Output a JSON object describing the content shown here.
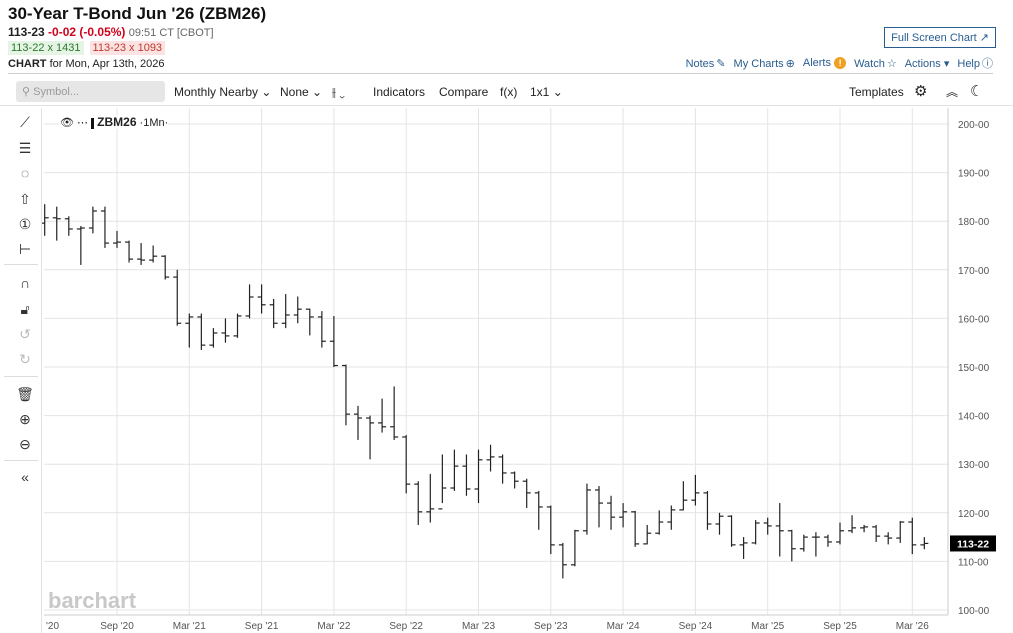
{
  "header": {
    "title": "30-Year T-Bond Jun '26 (ZBM26)",
    "last": "113-23",
    "change": "-0-02 (-0.05%)",
    "time": "09:51 CT [CBOT]",
    "bid": "113-22 x 1431",
    "ask": "113-23 x 1093",
    "chart_label": "CHART",
    "chart_for": "for Mon, Apr 13th, 2026"
  },
  "top_links": {
    "full_screen": "Full Screen Chart",
    "notes": "Notes",
    "my_charts": "My Charts",
    "alerts": "Alerts",
    "watch": "Watch",
    "actions": "Actions",
    "help": "Help"
  },
  "toolbar": {
    "search_placeholder": "Symbol...",
    "period": "Monthly Nearby",
    "overlay": "None",
    "indicators": "Indicators",
    "compare": "Compare",
    "fx": "f(x)",
    "layout": "1x1",
    "templates": "Templates"
  },
  "legend": {
    "symbol": "ZBM26",
    "interval": "1Mn"
  },
  "watermark": "barchart",
  "colors": {
    "bar": "#222222",
    "grid": "#e4e4e4",
    "price_box": "#000000"
  },
  "chart_data": {
    "type": "ohlc",
    "title": "ZBM26 monthly nearby",
    "start_month": "2020-02",
    "ylim": [
      100,
      200
    ],
    "y_ticks": [
      {
        "v": 200,
        "t": "200-00"
      },
      {
        "v": 190,
        "t": "190-00"
      },
      {
        "v": 180,
        "t": "180-00"
      },
      {
        "v": 170,
        "t": "170-00"
      },
      {
        "v": 160,
        "t": "160-00"
      },
      {
        "v": 150,
        "t": "150-00"
      },
      {
        "v": 140,
        "t": "140-00"
      },
      {
        "v": 130,
        "t": "130-00"
      },
      {
        "v": 120,
        "t": "120-00"
      },
      {
        "v": 110,
        "t": "110-00"
      },
      {
        "v": 100,
        "t": "100-00"
      }
    ],
    "x_ticks": [
      {
        "i": 1,
        "t": "'20"
      },
      {
        "i": 7,
        "t": "Sep '20"
      },
      {
        "i": 13,
        "t": "Mar '21"
      },
      {
        "i": 19,
        "t": "Sep '21"
      },
      {
        "i": 25,
        "t": "Mar '22"
      },
      {
        "i": 31,
        "t": "Sep '22"
      },
      {
        "i": 37,
        "t": "Mar '23"
      },
      {
        "i": 43,
        "t": "Sep '23"
      },
      {
        "i": 49,
        "t": "Mar '24"
      },
      {
        "i": 55,
        "t": "Sep '24"
      },
      {
        "i": 61,
        "t": "Mar '25"
      },
      {
        "i": 67,
        "t": "Sep '25"
      },
      {
        "i": 73,
        "t": "Mar '26"
      }
    ],
    "last_price": {
      "v": 113.69,
      "t": "113-22"
    },
    "bars": [
      [
        178.5,
        181,
        177,
        179.6
      ],
      [
        179.6,
        183.5,
        177,
        180.7
      ],
      [
        180.7,
        183,
        176,
        180.5
      ],
      [
        180.5,
        181,
        177,
        178.4
      ],
      [
        178.4,
        179,
        171,
        178.6
      ],
      [
        178.6,
        183,
        177.5,
        182.1
      ],
      [
        182.1,
        183,
        174.5,
        175.5
      ],
      [
        175.5,
        178,
        174.5,
        175.7
      ],
      [
        175.7,
        176,
        171.5,
        172.2
      ],
      [
        172.2,
        175.5,
        171,
        172.0
      ],
      [
        172,
        175,
        171.5,
        172.8
      ],
      [
        172.8,
        173,
        168,
        168.5
      ],
      [
        168.5,
        170,
        158.5,
        159.0
      ],
      [
        159,
        161,
        154,
        160.3
      ],
      [
        160.3,
        161,
        153.5,
        154.5
      ],
      [
        154.5,
        158,
        154,
        157.0
      ],
      [
        157,
        160,
        155,
        156.4
      ],
      [
        156.4,
        161,
        156,
        160.5
      ],
      [
        160.5,
        167,
        160,
        164.4
      ],
      [
        164.4,
        167,
        161,
        162.8
      ],
      [
        162.8,
        164,
        158,
        159.0
      ],
      [
        159,
        165,
        158,
        160.7
      ],
      [
        160.7,
        164.5,
        159,
        161.9
      ],
      [
        161.9,
        162,
        156.5,
        160.3
      ],
      [
        160.3,
        161.5,
        154,
        155.3
      ],
      [
        155.3,
        160.5,
        150,
        150.3
      ],
      [
        150.3,
        150.5,
        138,
        140.3
      ],
      [
        140.3,
        142,
        135,
        139.5
      ],
      [
        139.5,
        140,
        131,
        138.5
      ],
      [
        138.5,
        143.5,
        136.5,
        137.7
      ],
      [
        137.7,
        146,
        135,
        135.6
      ],
      [
        135.6,
        136,
        124,
        125.9
      ],
      [
        125.9,
        126.5,
        117.5,
        120.2
      ],
      [
        120.2,
        128,
        118,
        120.8
      ],
      [
        120.8,
        132,
        122,
        125.1
      ],
      [
        125.1,
        133,
        124.5,
        129.6
      ],
      [
        129.6,
        132,
        123.5,
        124.9
      ],
      [
        124.9,
        133,
        122,
        130.9
      ],
      [
        130.9,
        134,
        128.5,
        131.5
      ],
      [
        131.5,
        132,
        126,
        128.2
      ],
      [
        128.2,
        128.5,
        125,
        126.5
      ],
      [
        126.5,
        127,
        121,
        124.1
      ],
      [
        124.1,
        124.5,
        116.5,
        121.2
      ],
      [
        121.2,
        121.5,
        111.5,
        113.4
      ],
      [
        113.4,
        113.8,
        106.5,
        109.3
      ],
      [
        109.3,
        116.5,
        109,
        116.3
      ],
      [
        116.3,
        126,
        115.5,
        124.7
      ],
      [
        124.7,
        125.5,
        117,
        122.0
      ],
      [
        122,
        123.5,
        116.5,
        119.1
      ],
      [
        119.1,
        122,
        117,
        120.2
      ],
      [
        120.2,
        120.4,
        113,
        113.6
      ],
      [
        113.6,
        117.5,
        113.5,
        115.8
      ],
      [
        115.8,
        120.5,
        115.5,
        118.1
      ],
      [
        118.1,
        121.5,
        116.5,
        120.6
      ],
      [
        120.6,
        126.5,
        120.5,
        122.6
      ],
      [
        122.6,
        127.8,
        121.5,
        124.1
      ],
      [
        124.1,
        124.5,
        116.5,
        117.7
      ],
      [
        117.7,
        120,
        115.5,
        119.3
      ],
      [
        119.3,
        119.5,
        113,
        113.4
      ],
      [
        113.4,
        115,
        110.5,
        113.8
      ],
      [
        113.8,
        118.5,
        113.5,
        117.9
      ],
      [
        117.9,
        119,
        115.5,
        117.3
      ],
      [
        117.3,
        122,
        111,
        116.3
      ],
      [
        116.3,
        116.5,
        110,
        112.6
      ],
      [
        112.6,
        115.5,
        112,
        115.0
      ],
      [
        115,
        116,
        111,
        115.0
      ],
      [
        115,
        115.5,
        113,
        114.0
      ],
      [
        114,
        118,
        113.5,
        116.3
      ],
      [
        116.3,
        119.5,
        115.8,
        116.9
      ],
      [
        116.9,
        117.5,
        116,
        117.1
      ],
      [
        117.1,
        117.5,
        114,
        115.2
      ],
      [
        115.2,
        116,
        113.5,
        114.8
      ],
      [
        114.8,
        118.3,
        113.8,
        118.1
      ],
      [
        118.1,
        119,
        111.5,
        113.4
      ],
      [
        113.4,
        115,
        112.5,
        113.7
      ]
    ]
  }
}
